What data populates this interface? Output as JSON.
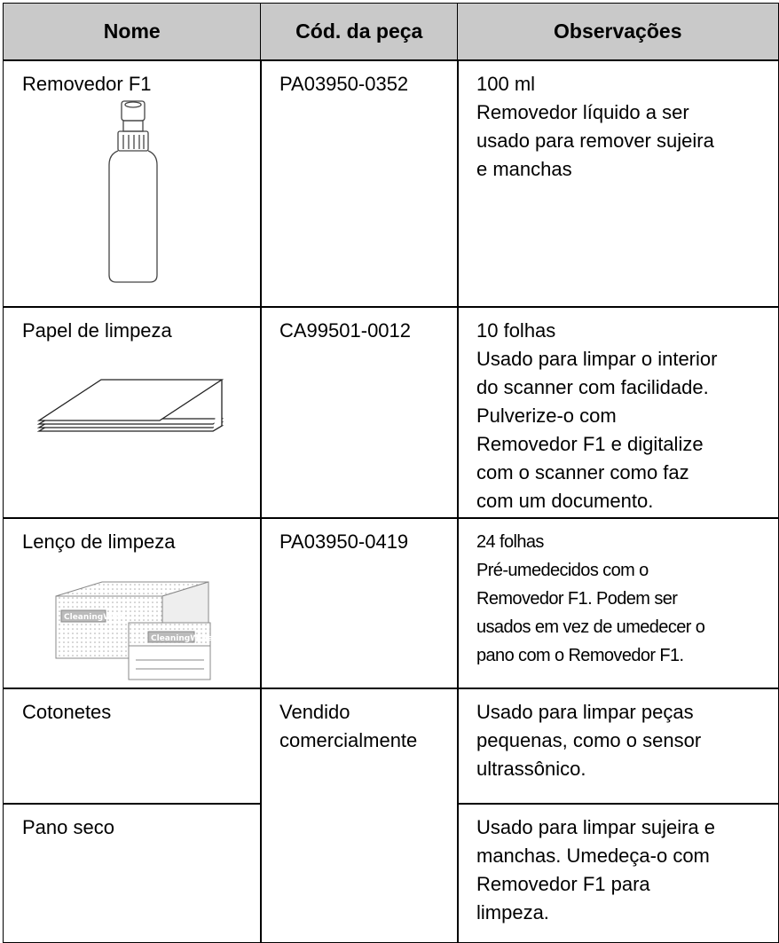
{
  "table": {
    "header": [
      "Nome",
      "Cód. da peça",
      "Observações"
    ],
    "rows": [
      {
        "name": "Removedor F1",
        "code": [
          "PA03950-0352"
        ],
        "notes": [
          "100 ml",
          "Removedor líquido a ser",
          "usado para remover sujeira",
          "e manchas"
        ]
      },
      {
        "name": "Papel de limpeza",
        "code": [
          "CA99501-0012"
        ],
        "notes": [
          "10 folhas",
          "Usado para limpar o interior",
          "do scanner com facilidade.",
          "Pulverize-o com",
          "Removedor F1 e digitalize",
          "com o scanner como faz",
          "com um documento."
        ]
      },
      {
        "name": "Lenço de limpeza",
        "code": [
          "PA03950-0419"
        ],
        "notes": [
          "24 folhas",
          "Pré-umedecidos com o",
          "Removedor F1. Podem ser",
          "usados em vez de umedecer o",
          "pano com o Removedor F1."
        ]
      },
      {
        "name": "Cotonetes",
        "code": [
          "Vendido",
          "comercialmente"
        ],
        "notes": [
          "Usado para limpar peças",
          "pequenas, como o sensor",
          "ultrassônico."
        ]
      },
      {
        "name": "Pano seco",
        "notes": [
          "Usado para limpar sujeira e",
          "manchas. Umedeça-o com",
          "Removedor F1 para",
          "limpeza."
        ]
      }
    ]
  }
}
